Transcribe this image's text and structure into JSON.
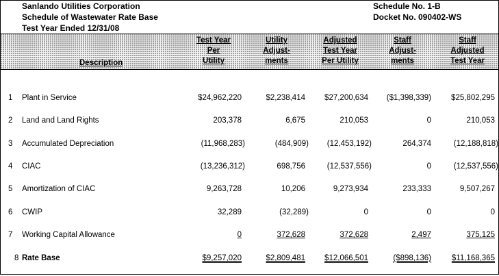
{
  "header": {
    "company": "Sanlando Utilities Corporation",
    "schedule_title": "Schedule of Wastewater Rate Base",
    "test_year": "Test Year Ended 12/31/08",
    "schedule_no": "Schedule No. 1-B",
    "docket_no": "Docket No. 090402-WS"
  },
  "columns": {
    "description": "Description",
    "c1": [
      "Test Year",
      "Per",
      "Utility"
    ],
    "c2": [
      "Utility",
      "Adjust-",
      "ments"
    ],
    "c3": [
      "Adjusted",
      "Test Year",
      "Per Utility"
    ],
    "c4": [
      "Staff",
      "Adjust-",
      "ments"
    ],
    "c5": [
      "Staff",
      "Adjusted",
      "Test Year"
    ]
  },
  "rows": [
    {
      "num": "1",
      "label": "Plant in Service",
      "v": [
        "$24,962,220",
        "$2,238,414",
        "$27,200,634",
        "($1,398,339)",
        "$25,802,295"
      ]
    },
    {
      "num": "2",
      "label": "Land and Land Rights",
      "v": [
        "203,378",
        "6,675",
        "210,053",
        "0",
        "210,053"
      ]
    },
    {
      "num": "3",
      "label": "Accumulated Depreciation",
      "v": [
        "(11,968,283)",
        "(484,909)",
        "(12,453,192)",
        "264,374",
        "(12,188,818)"
      ]
    },
    {
      "num": "4",
      "label": "CIAC",
      "v": [
        "(13,236,312)",
        "698,756",
        "(12,537,556)",
        "0",
        "(12,537,556)"
      ]
    },
    {
      "num": "5",
      "label": "Amortization of CIAC",
      "v": [
        "9,263,728",
        "10,206",
        "9,273,934",
        "233,333",
        "9,507,267"
      ]
    },
    {
      "num": "6",
      "label": "CWIP",
      "v": [
        "32,289",
        "(32,289)",
        "0",
        "0",
        "0"
      ]
    },
    {
      "num": "7",
      "label": "Working Capital Allowance",
      "v": [
        "0",
        "372,628",
        "372,628",
        "2,497",
        "375,125"
      ]
    },
    {
      "num": "8",
      "label": "Rate Base",
      "v": [
        "$9,257,020",
        "$2,809,481",
        "$12,066,501",
        "($898,136)",
        "$11,168,365"
      ]
    }
  ]
}
